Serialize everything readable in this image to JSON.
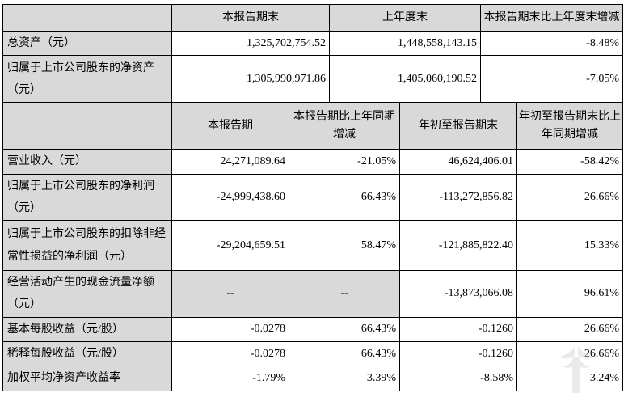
{
  "page": {
    "background": "#ffffff",
    "border_color": "#000000",
    "shaded_cell_color": "#d9d9d9",
    "text_color": "#000000",
    "watermark_color": "#d9d9d9"
  },
  "table1": {
    "columns": [
      "",
      "本报告期末",
      "上年度末",
      "本报告期末比上年度末增减"
    ],
    "rows": [
      {
        "label": "总资产（元）",
        "values": [
          "1,325,702,754.52",
          "1,448,558,143.15",
          "-8.48%"
        ]
      },
      {
        "label": "归属于上市公司股东的净资产（元）",
        "values": [
          "1,305,990,971.86",
          "1,405,060,190.52",
          "-7.05%"
        ]
      }
    ]
  },
  "table2": {
    "columns": [
      "",
      "本报告期",
      "本报告期比上年同期增减",
      "年初至报告期末",
      "年初至报告期末比上年同期增减"
    ],
    "rows": [
      {
        "label": "营业收入（元）",
        "values": [
          "24,271,089.64",
          "-21.05%",
          "46,624,406.01",
          "-58.42%"
        ]
      },
      {
        "label": "归属于上市公司股东的净利润（元）",
        "values": [
          "-24,999,438.60",
          "66.43%",
          "-113,272,856.82",
          "26.66%"
        ]
      },
      {
        "label": "归属于上市公司股东的扣除非经常性损益的净利润（元）",
        "values": [
          "-29,204,659.51",
          "58.47%",
          "-121,885,822.40",
          "15.33%"
        ]
      },
      {
        "label": "经营活动产生的现金流量净额（元）",
        "values": [
          "--",
          "--",
          "-13,873,066.08",
          "96.61%"
        ],
        "gray_cells": [
          0,
          1
        ]
      },
      {
        "label": "基本每股收益（元/股）",
        "values": [
          "-0.0278",
          "66.43%",
          "-0.1260",
          "26.66%"
        ]
      },
      {
        "label": "稀释每股收益（元/股）",
        "values": [
          "-0.0278",
          "66.43%",
          "-0.1260",
          "26.66%"
        ]
      },
      {
        "label": "加权平均净资产收益率",
        "values": [
          "-1.79%",
          "3.39%",
          "-8.58%",
          "3.24%"
        ]
      }
    ]
  },
  "watermark": {
    "icon": "eo-logo-watermark"
  }
}
